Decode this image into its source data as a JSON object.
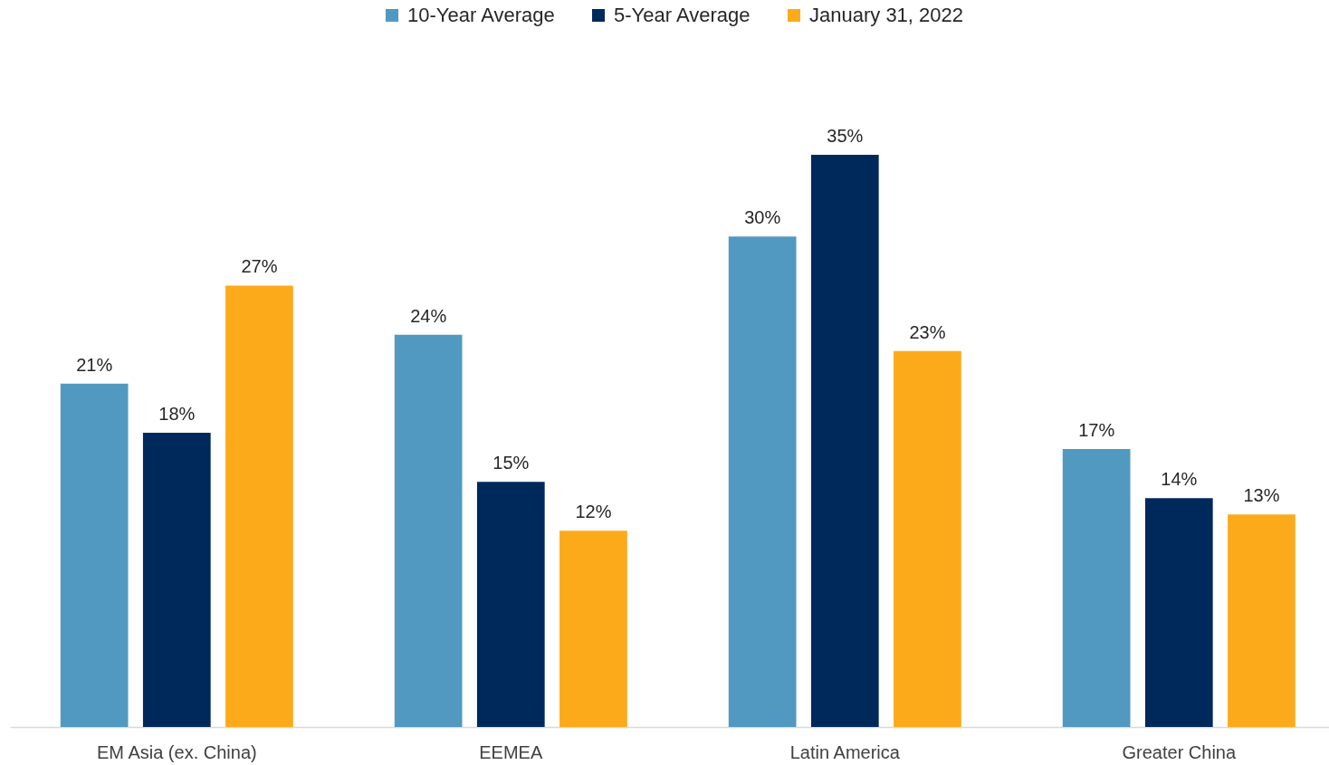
{
  "chart_data": {
    "type": "bar",
    "categories": [
      "EM Asia (ex. China)",
      "EEMEA",
      "Latin America",
      "Greater China"
    ],
    "series": [
      {
        "name": "10-Year Average",
        "color": "#5199c1",
        "values": [
          21,
          24,
          30,
          17
        ],
        "value_labels": [
          "21%",
          "24%",
          "30%",
          "17%"
        ]
      },
      {
        "name": "5-Year Average",
        "color": "#00295b",
        "values": [
          18,
          15,
          35,
          14
        ],
        "value_labels": [
          "18%",
          "15%",
          "35%",
          "14%"
        ]
      },
      {
        "name": "January 31, 2022",
        "color": "#fdaa1a",
        "values": [
          27,
          12,
          23,
          13
        ],
        "value_labels": [
          "27%",
          "12%",
          "23%",
          "13%"
        ]
      }
    ],
    "legend": "top"
  }
}
